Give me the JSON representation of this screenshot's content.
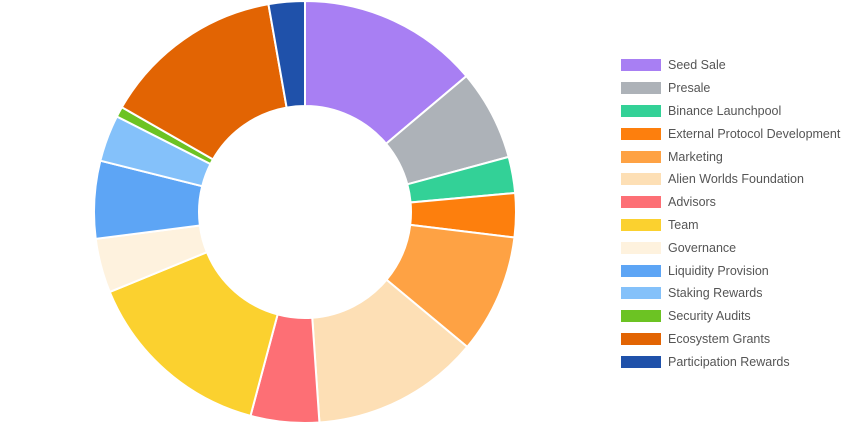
{
  "chart_data": {
    "type": "doughnut",
    "legend_position": "right",
    "series": [
      {
        "label": "Seed Sale",
        "value": 14,
        "color": "#a87ff3"
      },
      {
        "label": "Presale",
        "value": 7,
        "color": "#adb2b8"
      },
      {
        "label": "Binance Launchpool",
        "value": 2.8,
        "color": "#33d197"
      },
      {
        "label": "External Protocol Development",
        "value": 3.4,
        "color": "#fd7f0d"
      },
      {
        "label": "Marketing",
        "value": 9.2,
        "color": "#fea244"
      },
      {
        "label": "Alien Worlds Foundation",
        "value": 13,
        "color": "#fddfb5"
      },
      {
        "label": "Advisors",
        "value": 5.3,
        "color": "#fd6f75"
      },
      {
        "label": "Team",
        "value": 14.8,
        "color": "#fbd12f"
      },
      {
        "label": "Governance",
        "value": 4.2,
        "color": "#fef2de"
      },
      {
        "label": "Liquidity Provision",
        "value": 6,
        "color": "#5da5f5"
      },
      {
        "label": "Staking Rewards",
        "value": 3.6,
        "color": "#84c1fa"
      },
      {
        "label": "Security Audits",
        "value": 0.8,
        "color": "#6cc323"
      },
      {
        "label": "Ecosystem Grants",
        "value": 14.1,
        "color": "#e26403"
      },
      {
        "label": "Participation Rewards",
        "value": 2.8,
        "color": "#1f51aa"
      }
    ]
  }
}
